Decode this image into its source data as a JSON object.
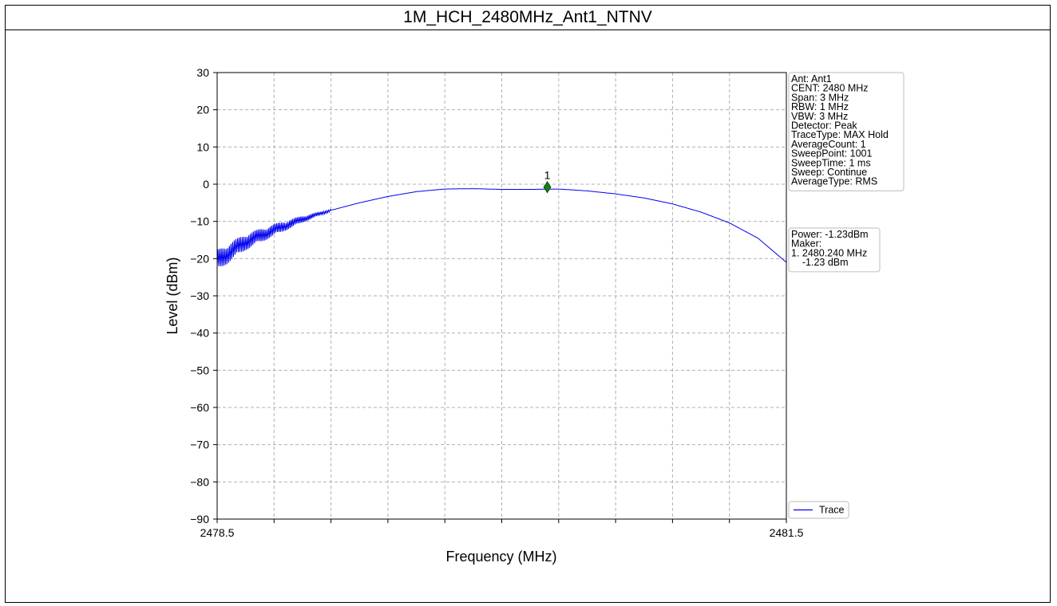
{
  "chart_data": {
    "type": "line",
    "title": "1M_HCH_2480MHz_Ant1_NTNV",
    "xlabel": "Frequency (MHz)",
    "ylabel": "Level (dBm)",
    "xlim": [
      2478.5,
      2481.5
    ],
    "ylim": [
      -90,
      30
    ],
    "x_tick_labels": [
      "2478.5",
      "2481.5"
    ],
    "y_ticks": [
      "30",
      "20",
      "10",
      "0",
      "−10",
      "−20",
      "−30",
      "−40",
      "−50",
      "−60",
      "−70",
      "−80",
      "−90"
    ],
    "grid": true,
    "legend": {
      "placement": "bottom-right",
      "entries": [
        "Trace"
      ]
    },
    "series": [
      {
        "name": "Trace",
        "color": "#0000ee",
        "x": [
          2478.5,
          2478.65,
          2478.8,
          2478.95,
          2479.1,
          2479.25,
          2479.4,
          2479.55,
          2479.7,
          2479.85,
          2480.0,
          2480.15,
          2480.3,
          2480.45,
          2480.6,
          2480.75,
          2480.9,
          2481.05,
          2481.2,
          2481.35,
          2481.5
        ],
        "y": [
          -20.5,
          -15.5,
          -12.3,
          -9.4,
          -7.0,
          -5.0,
          -3.3,
          -2.0,
          -1.3,
          -1.2,
          -1.4,
          -1.4,
          -1.3,
          -1.8,
          -2.6,
          -3.7,
          -5.3,
          -7.5,
          -10.4,
          -14.5,
          -21.0
        ],
        "noise_below_x": 2479.1
      }
    ],
    "marker": {
      "label": "1",
      "x": 2480.24,
      "y": -1.23,
      "color": "#1a7a1a"
    },
    "info_box": [
      "Ant: Ant1",
      "CENT: 2480 MHz",
      "Span: 3 MHz",
      "RBW: 1 MHz",
      "VBW: 3 MHz",
      "Detector: Peak",
      "TraceType: MAX Hold",
      "AverageCount: 1",
      "SweepPoint: 1001",
      "SweepTime: 1 ms",
      "Sweep: Continue",
      "AverageType: RMS"
    ],
    "power_box": [
      "Power: -1.23dBm",
      "Maker:",
      "1. 2480.240 MHz",
      "    -1.23 dBm"
    ]
  }
}
